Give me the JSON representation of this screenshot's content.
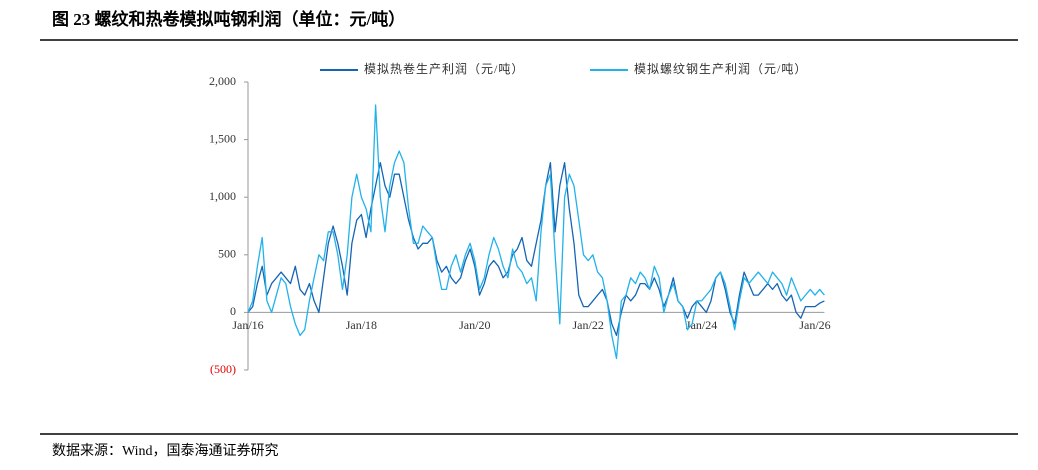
{
  "chart_data": {
    "type": "line",
    "title": "图 23 螺纹和热卷模拟吨钢利润（单位：元/吨）",
    "source": "数据来源：Wind，国泰海通证券研究",
    "categories": [
      "Jan/16",
      null,
      null,
      null,
      null,
      null,
      null,
      null,
      null,
      null,
      null,
      null,
      null,
      null,
      null,
      null,
      null,
      null,
      null,
      null,
      null,
      null,
      null,
      null,
      "Jan/18",
      null,
      null,
      null,
      null,
      null,
      null,
      null,
      null,
      null,
      null,
      null,
      null,
      null,
      null,
      null,
      null,
      null,
      null,
      null,
      null,
      null,
      null,
      null,
      "Jan/20",
      null,
      null,
      null,
      null,
      null,
      null,
      null,
      null,
      null,
      null,
      null,
      null,
      null,
      null,
      null,
      null,
      null,
      null,
      null,
      null,
      null,
      null,
      null,
      "Jan/22",
      null,
      null,
      null,
      null,
      null,
      null,
      null,
      null,
      null,
      null,
      null,
      null,
      null,
      null,
      null,
      null,
      null,
      null,
      null,
      null,
      null,
      null,
      null,
      "Jan/24",
      null,
      null,
      null,
      null,
      null,
      null,
      null,
      null,
      null,
      null,
      null,
      null,
      null,
      null,
      null,
      null,
      null,
      null,
      null,
      null,
      null,
      null,
      null,
      "Jan/26",
      null,
      null
    ],
    "series": [
      {
        "name": "模拟热卷生产利润（元/吨）",
        "color": "#1565b5",
        "values": [
          0,
          50,
          250,
          400,
          150,
          250,
          300,
          350,
          300,
          250,
          400,
          200,
          150,
          250,
          100,
          0,
          300,
          600,
          750,
          600,
          400,
          150,
          600,
          800,
          850,
          650,
          900,
          1100,
          1300,
          1100,
          1000,
          1200,
          1200,
          1000,
          800,
          650,
          550,
          600,
          600,
          650,
          450,
          350,
          400,
          300,
          250,
          300,
          450,
          550,
          400,
          150,
          250,
          400,
          450,
          400,
          300,
          350,
          500,
          550,
          650,
          450,
          400,
          600,
          800,
          1100,
          1300,
          700,
          1100,
          1300,
          900,
          600,
          150,
          50,
          50,
          100,
          150,
          200,
          100,
          -100,
          -200,
          0,
          150,
          100,
          150,
          250,
          250,
          200,
          300,
          200,
          50,
          150,
          300,
          100,
          50,
          -50,
          50,
          100,
          50,
          0,
          100,
          300,
          350,
          200,
          0,
          -100,
          150,
          350,
          250,
          150,
          150,
          200,
          250,
          200,
          250,
          150,
          100,
          150,
          0,
          -50,
          50,
          50,
          50,
          80,
          100
        ]
      },
      {
        "name": "模拟螺纹钢生产利润（元/吨）",
        "color": "#22b2ea",
        "values": [
          0,
          100,
          400,
          650,
          100,
          0,
          150,
          300,
          250,
          50,
          -100,
          -200,
          -150,
          100,
          300,
          500,
          450,
          700,
          700,
          500,
          200,
          500,
          1000,
          1200,
          1000,
          900,
          700,
          1800,
          1000,
          700,
          1100,
          1300,
          1400,
          1300,
          900,
          600,
          600,
          750,
          700,
          650,
          400,
          200,
          200,
          400,
          500,
          350,
          500,
          600,
          450,
          200,
          300,
          500,
          650,
          550,
          400,
          300,
          550,
          400,
          350,
          250,
          300,
          100,
          700,
          1100,
          1200,
          500,
          -100,
          1000,
          1200,
          1100,
          800,
          500,
          450,
          500,
          350,
          300,
          100,
          -200,
          -400,
          100,
          150,
          300,
          250,
          350,
          300,
          200,
          400,
          300,
          0,
          150,
          250,
          100,
          50,
          -150,
          -100,
          100,
          100,
          150,
          200,
          300,
          350,
          250,
          50,
          -150,
          100,
          300,
          250,
          300,
          350,
          300,
          250,
          350,
          300,
          250,
          150,
          300,
          200,
          100,
          150,
          200,
          150,
          200,
          150
        ]
      }
    ],
    "ylim": [
      -500,
      2000
    ],
    "yticks": [
      {
        "value": -500,
        "label": "(500)"
      },
      0,
      500,
      {
        "value": 1000,
        "label": "1,000"
      },
      {
        "value": 1500,
        "label": "1,500"
      },
      {
        "value": 2000,
        "label": "2,000"
      }
    ],
    "negative_tick_color": "#e00000",
    "grid": false
  }
}
